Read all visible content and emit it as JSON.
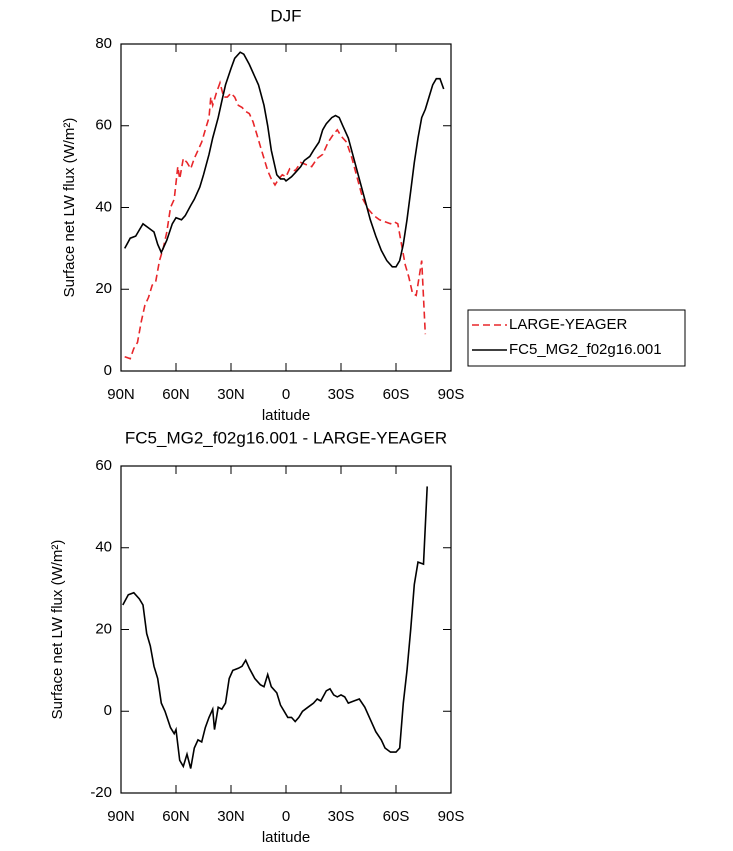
{
  "chart_data": [
    {
      "type": "line",
      "title": "DJF",
      "xlabel": "latitude",
      "ylabel": "Surface net LW flux (W/m²)",
      "xlim": [
        90,
        -90
      ],
      "xticks": [
        {
          "value": 90,
          "label": "90N"
        },
        {
          "value": 60,
          "label": "60N"
        },
        {
          "value": 30,
          "label": "30N"
        },
        0,
        {
          "value": -30,
          "label": "30S"
        },
        {
          "value": -60,
          "label": "60S"
        },
        {
          "value": -90,
          "label": "90S"
        }
      ],
      "ylim": [
        0,
        80
      ],
      "yticks": [
        0,
        20,
        40,
        60,
        80
      ],
      "series": [
        {
          "name": "LARGE-YEAGER",
          "color": "#e8262a",
          "linestyle": "dashed",
          "x": [
            88,
            85,
            83,
            81,
            79,
            77,
            75,
            73,
            71,
            69,
            67,
            65,
            63,
            61,
            59,
            58,
            56,
            54,
            52,
            50,
            48,
            46,
            44,
            42,
            41,
            40,
            38,
            36,
            34,
            32,
            30,
            28,
            26,
            24,
            22,
            20,
            18,
            16,
            14,
            12,
            10,
            8,
            6,
            4,
            2,
            0,
            -2,
            -5,
            -8,
            -11,
            -14,
            -17,
            -20,
            -23,
            -26,
            -28,
            -30,
            -33,
            -36,
            -39,
            -42,
            -45,
            -48,
            -51,
            -54,
            -57,
            -59,
            -61,
            -63,
            -65,
            -67,
            -69,
            -71,
            -73,
            -74,
            -75,
            -76
          ],
          "values": [
            3.5,
            3,
            5.5,
            7,
            12,
            16,
            18,
            21,
            22,
            27,
            30,
            34,
            40,
            42,
            50,
            47,
            52,
            51,
            49.5,
            52,
            54,
            56,
            59,
            62,
            67,
            65,
            68,
            70.5,
            67,
            67,
            68,
            67,
            65,
            64.5,
            63.5,
            63,
            61,
            58,
            55,
            52,
            49,
            47,
            45.5,
            47,
            48,
            47.5,
            49.5,
            49,
            51,
            50.5,
            50,
            52,
            53,
            56,
            58,
            59,
            57.5,
            56,
            52,
            47,
            42,
            39.5,
            38,
            37,
            36.5,
            36,
            36.5,
            36,
            31,
            26,
            23,
            19,
            18.5,
            24,
            27,
            18,
            9
          ]
        },
        {
          "name": "FC5_MG2_f02g16.001",
          "color": "#000000",
          "linestyle": "solid",
          "x": [
            88,
            85,
            82,
            80,
            78,
            75,
            72,
            70,
            68,
            65,
            62,
            60,
            57,
            55,
            52,
            50,
            47,
            45,
            42,
            40,
            37,
            35,
            33,
            30,
            28,
            25,
            23,
            20,
            17,
            15,
            12,
            10,
            8,
            5,
            3,
            1,
            0,
            -3,
            -5,
            -8,
            -10,
            -13,
            -15,
            -18,
            -20,
            -22,
            -25,
            -27,
            -29,
            -31,
            -34,
            -37,
            -40,
            -43,
            -46,
            -49,
            -52,
            -55,
            -58,
            -60,
            -62,
            -64,
            -66,
            -68,
            -70,
            -72,
            -74,
            -76,
            -78,
            -80,
            -82,
            -84,
            -86
          ],
          "values": [
            30,
            32.5,
            33,
            34.5,
            36,
            35,
            34,
            31,
            29,
            32,
            36,
            37.5,
            37,
            38,
            40.5,
            42,
            45,
            48,
            53,
            57,
            62,
            66,
            70,
            74,
            76.5,
            78,
            77.5,
            75,
            72,
            70,
            65,
            60,
            54,
            48,
            47,
            47,
            46.5,
            47.5,
            48.5,
            50,
            51.5,
            52.5,
            54,
            56,
            59,
            60.5,
            62,
            62.5,
            62,
            60,
            57,
            52,
            47,
            42,
            37,
            33,
            29.5,
            27,
            25.5,
            25.5,
            27,
            31,
            37,
            44,
            51,
            57,
            62,
            64,
            67,
            70,
            71.5,
            71.5,
            69
          ]
        }
      ]
    },
    {
      "type": "line",
      "title": "FC5_MG2_f02g16.001 - LARGE-YEAGER",
      "xlabel": "latitude",
      "ylabel": "Surface net LW flux (W/m²)",
      "xlim": [
        90,
        -90
      ],
      "xticks": [
        {
          "value": 90,
          "label": "90N"
        },
        {
          "value": 60,
          "label": "60N"
        },
        {
          "value": 30,
          "label": "30N"
        },
        0,
        {
          "value": -30,
          "label": "30S"
        },
        {
          "value": -60,
          "label": "60S"
        },
        {
          "value": -90,
          "label": "90S"
        }
      ],
      "ylim": [
        -20,
        60
      ],
      "yticks": [
        -20,
        0,
        20,
        40,
        60
      ],
      "series": [
        {
          "color": "#000000",
          "linestyle": "solid",
          "x": [
            89,
            86,
            83,
            80,
            78,
            76,
            74,
            72,
            70,
            68,
            66,
            63,
            61,
            60,
            58,
            56,
            54,
            52,
            50,
            48,
            46,
            44,
            42,
            40,
            39,
            37,
            35,
            33,
            31,
            29,
            26,
            24,
            22,
            20,
            17,
            14,
            12,
            10,
            8,
            5,
            3,
            1,
            -1,
            -3,
            -5,
            -7,
            -9,
            -12,
            -15,
            -17,
            -19,
            -22,
            -24,
            -26,
            -28,
            -30,
            -32,
            -34,
            -37,
            -40,
            -43,
            -46,
            -49,
            -52,
            -54,
            -57,
            -60,
            -62,
            -64,
            -66,
            -68,
            -70,
            -72,
            -75,
            -77
          ],
          "values": [
            26,
            28.5,
            29,
            27.5,
            26,
            19,
            16,
            11,
            8,
            2,
            0,
            -4,
            -5.5,
            -4.5,
            -12,
            -13.5,
            -10.5,
            -14,
            -9,
            -7,
            -7.5,
            -4,
            -1.5,
            0.5,
            -4.5,
            1,
            0.5,
            2,
            8,
            10,
            10.5,
            11,
            12.5,
            10.5,
            8,
            6.5,
            6,
            9,
            6,
            4.5,
            1.5,
            0,
            -1.5,
            -1.5,
            -2.5,
            -1.5,
            0,
            1,
            2,
            3,
            2.5,
            5,
            5.5,
            4,
            3.5,
            4,
            3.5,
            2,
            2.5,
            3,
            1,
            -2,
            -5,
            -7,
            -9,
            -10,
            -10,
            -9,
            2,
            10,
            20,
            31,
            36.5,
            36,
            55
          ]
        }
      ]
    }
  ]
}
